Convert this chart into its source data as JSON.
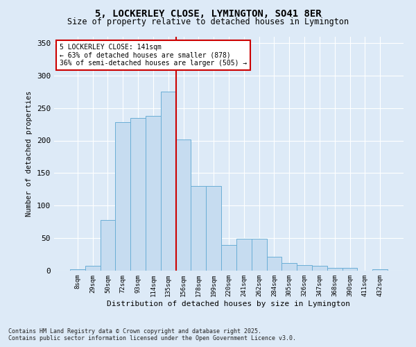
{
  "title_line1": "5, LOCKERLEY CLOSE, LYMINGTON, SO41 8ER",
  "title_line2": "Size of property relative to detached houses in Lymington",
  "xlabel": "Distribution of detached houses by size in Lymington",
  "ylabel": "Number of detached properties",
  "categories": [
    "8sqm",
    "29sqm",
    "50sqm",
    "72sqm",
    "93sqm",
    "114sqm",
    "135sqm",
    "156sqm",
    "178sqm",
    "199sqm",
    "220sqm",
    "241sqm",
    "262sqm",
    "284sqm",
    "305sqm",
    "326sqm",
    "347sqm",
    "368sqm",
    "390sqm",
    "411sqm",
    "432sqm"
  ],
  "values": [
    2,
    8,
    78,
    228,
    235,
    238,
    275,
    202,
    130,
    130,
    39,
    49,
    49,
    21,
    12,
    9,
    7,
    4,
    4,
    0,
    2
  ],
  "bar_edge_color": "#6aaed6",
  "bar_fill_color": "#c6dcf0",
  "vline_color": "#cc0000",
  "vline_x": 6.5,
  "annotation_title": "5 LOCKERLEY CLOSE: 141sqm",
  "annotation_line1": "← 63% of detached houses are smaller (878)",
  "annotation_line2": "36% of semi-detached houses are larger (505) →",
  "annotation_box_color": "#ffffff",
  "annotation_box_edge": "#cc0000",
  "ylim": [
    0,
    360
  ],
  "yticks": [
    0,
    50,
    100,
    150,
    200,
    250,
    300,
    350
  ],
  "footer1": "Contains HM Land Registry data © Crown copyright and database right 2025.",
  "footer2": "Contains public sector information licensed under the Open Government Licence v3.0.",
  "bg_color": "#ddeaf7",
  "plot_bg_color": "#ddeaf7"
}
